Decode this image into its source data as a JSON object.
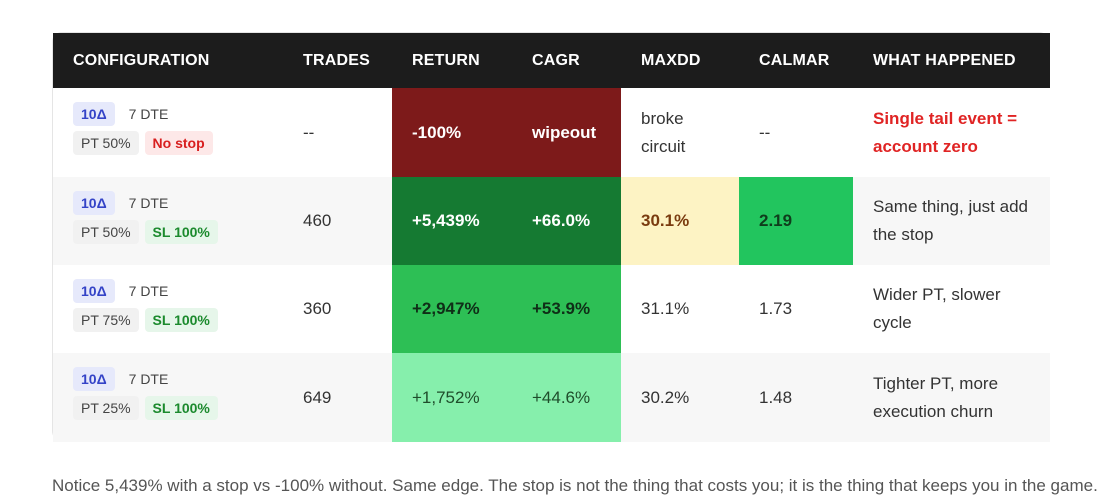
{
  "colors": {
    "header_bg": "#1c1c1c",
    "wipeout_bg": "#7d1a1a",
    "best_bg": "#157a32",
    "good_bg": "#2dbf55",
    "ok_bg": "#86efac",
    "maxdd_warn_bg": "#fdf3c4",
    "calmar_best_bg": "#22c55e",
    "alert_red": "#e02424"
  },
  "headers": {
    "configuration": "CONFIGURATION",
    "trades": "TRADES",
    "return": "RETURN",
    "cagr": "CAGR",
    "maxdd": "MAXDD",
    "calmar": "CALMAR",
    "what_happened": "WHAT HAPPENED"
  },
  "rows": [
    {
      "delta": "10Δ",
      "dte": "7 DTE",
      "pt": "PT 50%",
      "stop": "No stop",
      "trades": "--",
      "return": "-100%",
      "cagr": "wipeout",
      "maxdd": "broke circuit",
      "calmar": "--",
      "what": "Single tail event = account zero"
    },
    {
      "delta": "10Δ",
      "dte": "7 DTE",
      "pt": "PT 50%",
      "stop": "SL 100%",
      "trades": "460",
      "return": "+5,439%",
      "cagr": "+66.0%",
      "maxdd": "30.1%",
      "calmar": "2.19",
      "what": "Same thing, just add the stop"
    },
    {
      "delta": "10Δ",
      "dte": "7 DTE",
      "pt": "PT 75%",
      "stop": "SL 100%",
      "trades": "360",
      "return": "+2,947%",
      "cagr": "+53.9%",
      "maxdd": "31.1%",
      "calmar": "1.73",
      "what": "Wider PT, slower cycle"
    },
    {
      "delta": "10Δ",
      "dte": "7 DTE",
      "pt": "PT 25%",
      "stop": "SL 100%",
      "trades": "649",
      "return": "+1,752%",
      "cagr": "+44.6%",
      "maxdd": "30.2%",
      "calmar": "1.48",
      "what": "Tighter PT, more execution churn"
    }
  ],
  "footer": {
    "text": "Notice 5,439% with a stop vs -100% without. Same edge. The stop is not the thing that costs you; it is the thing that keeps you in the game."
  }
}
